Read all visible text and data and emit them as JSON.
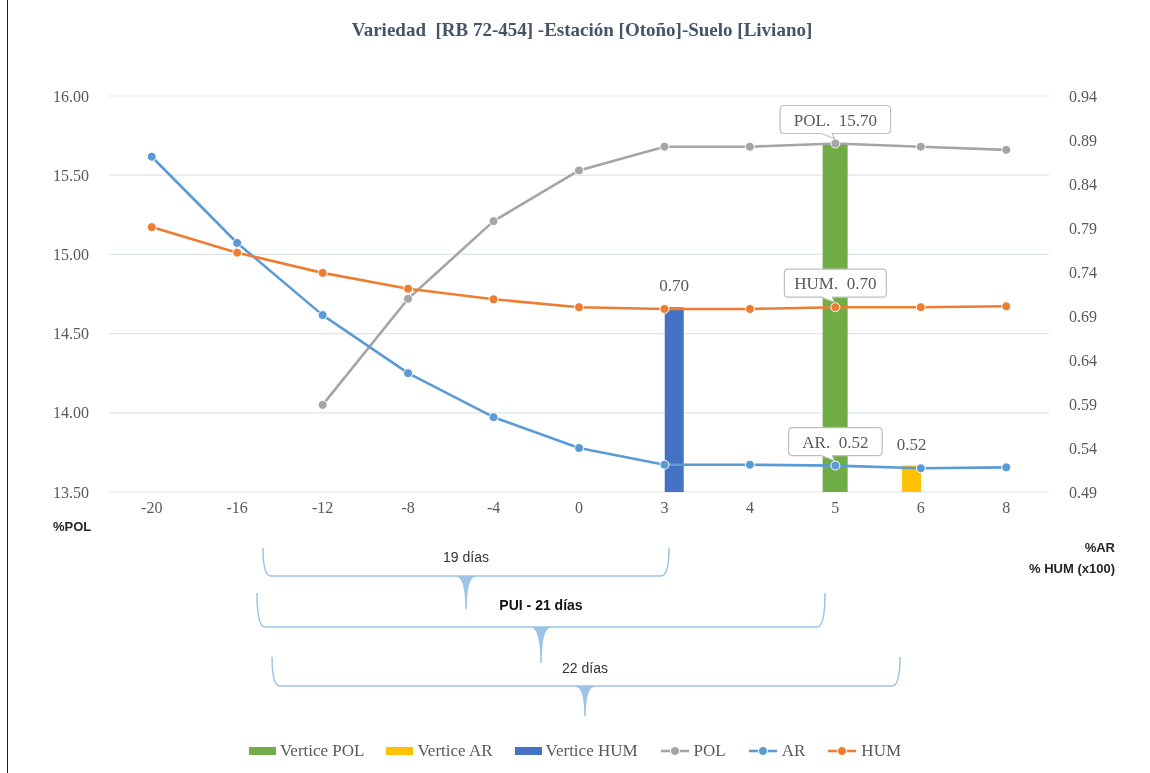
{
  "chart_data": {
    "type": "line",
    "title": "Variedad  [RB 72-454] -Estación [Otoño]-Suelo [Liviano]",
    "ylabel": "%POL",
    "y2label": "%AR\n% HUM (x100)",
    "categories": [
      "-20",
      "-16",
      "-12",
      "-8",
      "-4",
      "0",
      "3",
      "4",
      "5",
      "6",
      "8"
    ],
    "series": [
      {
        "name": "Vertice POL",
        "type": "bar",
        "color": "#70ad47",
        "values": [
          null,
          null,
          null,
          null,
          null,
          null,
          null,
          null,
          15.7,
          null,
          null
        ]
      },
      {
        "name": "Vertice AR",
        "type": "bar",
        "color": "#ffc000",
        "axis": "y2",
        "values": [
          null,
          null,
          null,
          null,
          null,
          null,
          null,
          null,
          null,
          0.52,
          null
        ],
        "value_labels": [
          null,
          null,
          null,
          null,
          null,
          null,
          null,
          null,
          null,
          "0.52",
          null
        ]
      },
      {
        "name": "Vertice HUM",
        "type": "bar",
        "color": "#4472c4",
        "axis": "y2",
        "values": [
          null,
          null,
          null,
          null,
          null,
          null,
          0.7,
          null,
          null,
          null,
          null
        ],
        "value_labels": [
          null,
          null,
          null,
          null,
          null,
          null,
          "0.70",
          null,
          null,
          null,
          null
        ]
      },
      {
        "name": "POL",
        "color": "#a5a5a5",
        "values": [
          null,
          null,
          14.05,
          14.72,
          15.21,
          15.53,
          15.68,
          15.68,
          15.7,
          15.68,
          15.66
        ],
        "value_labels": [
          null,
          null,
          null,
          null,
          null,
          null,
          null,
          null,
          "POL.  15.70",
          null,
          null
        ]
      },
      {
        "name": "AR",
        "color": "#5b9bd5",
        "axis": "y2",
        "values": [
          0.871,
          0.773,
          0.691,
          0.625,
          0.575,
          0.54,
          0.521,
          0.521,
          0.52,
          0.517,
          0.518
        ],
        "value_labels": [
          null,
          null,
          null,
          null,
          null,
          null,
          null,
          null,
          "AR.  0.52",
          null,
          null
        ]
      },
      {
        "name": "HUM",
        "color": "#ed7d31",
        "axis": "y2",
        "values": [
          0.791,
          0.762,
          0.739,
          0.721,
          0.709,
          0.7,
          0.698,
          0.698,
          0.7,
          0.7,
          0.701
        ],
        "value_labels": [
          null,
          null,
          null,
          null,
          null,
          null,
          null,
          null,
          "HUM.  0.70",
          null,
          null
        ]
      }
    ],
    "ylim": [
      13.5,
      16
    ],
    "yticks": [
      {
        "value": 13.5,
        "label": "13.50"
      },
      {
        "value": 14,
        "label": "14.00"
      },
      {
        "value": 14.5,
        "label": "14.50"
      },
      {
        "value": 15,
        "label": "15.00"
      },
      {
        "value": 15.5,
        "label": "15.50"
      },
      {
        "value": 16,
        "label": "16.00"
      }
    ],
    "y2lim": [
      0.49,
      0.94
    ],
    "y2ticks": [
      0.49,
      0.54,
      0.59,
      0.64,
      0.69,
      0.74,
      0.79,
      0.84,
      0.89,
      0.94
    ],
    "grid": "y",
    "legend": "bottom",
    "marker": "circle",
    "line_style": "solid",
    "annotations": [
      "19 días",
      "PUI - 21 días",
      "22 días"
    ]
  }
}
